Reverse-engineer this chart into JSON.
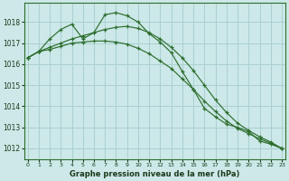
{
  "title": "Graphe pression niveau de la mer (hPa)",
  "background_color": "#cce8e8",
  "grid_color": "#aad0d0",
  "line_color": "#2d6e2d",
  "ylim": [
    1011.5,
    1018.9
  ],
  "xlim": [
    -0.3,
    23.3
  ],
  "yticks": [
    1012,
    1013,
    1014,
    1015,
    1016,
    1017,
    1018
  ],
  "xticks": [
    0,
    1,
    2,
    3,
    4,
    5,
    6,
    7,
    8,
    9,
    10,
    11,
    12,
    13,
    14,
    15,
    16,
    17,
    18,
    19,
    20,
    21,
    22,
    23
  ],
  "s1": [
    1016.3,
    1016.6,
    1017.2,
    1017.65,
    1017.9,
    1017.2,
    1017.5,
    1018.35,
    1018.45,
    1018.3,
    1018.0,
    1017.45,
    1017.05,
    1016.55,
    1015.65,
    1014.8,
    1013.9,
    1013.5,
    1013.15,
    1013.0,
    1012.8,
    1012.35,
    1012.2,
    1012.0
  ],
  "s2": [
    1016.3,
    1016.6,
    1016.8,
    1017.0,
    1017.2,
    1017.35,
    1017.5,
    1017.65,
    1017.75,
    1017.8,
    1017.7,
    1017.5,
    1017.2,
    1016.8,
    1016.3,
    1015.7,
    1015.0,
    1014.3,
    1013.7,
    1013.2,
    1012.85,
    1012.55,
    1012.3,
    1012.0
  ],
  "s3": [
    1016.3,
    1016.6,
    1016.7,
    1016.85,
    1017.0,
    1017.05,
    1017.1,
    1017.1,
    1017.05,
    1016.95,
    1016.75,
    1016.5,
    1016.15,
    1015.8,
    1015.3,
    1014.8,
    1014.25,
    1013.75,
    1013.3,
    1012.95,
    1012.7,
    1012.45,
    1012.25,
    1012.0
  ]
}
